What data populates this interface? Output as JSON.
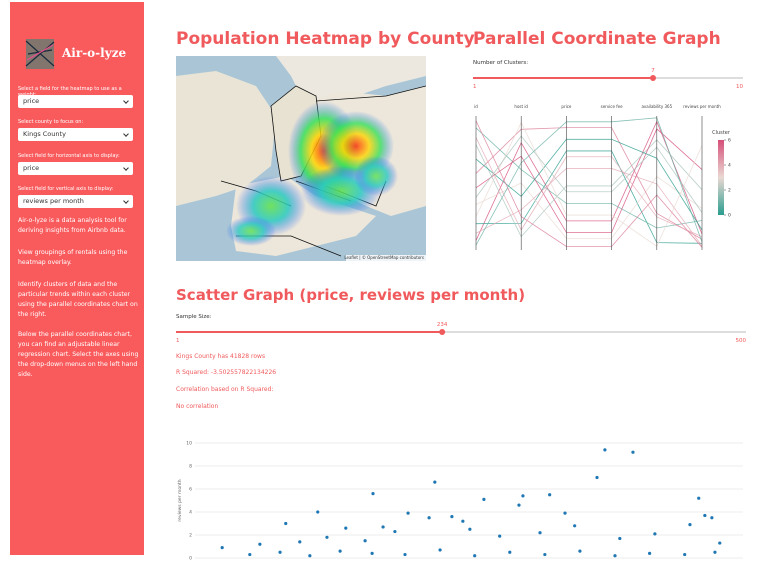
{
  "sidebar": {
    "app_title": "Air-o-lyze",
    "controls": [
      {
        "label": "Select a field for the heatmap to use as a weight:",
        "value": "price"
      },
      {
        "label": "Select county to focus on:",
        "value": "Kings County"
      },
      {
        "label": "Select field for horizontal axis to display:",
        "value": "price"
      },
      {
        "label": "Select field for vertical axis to display:",
        "value": "reviews per month"
      }
    ],
    "paragraphs": [
      "Air-o-lyze is a data analysis tool for deriving insights from Airbnb data.",
      "View groupings of rentals using the heatmap overlay.",
      "Identify clusters of data and the particular trends within each cluster using the parallel coordinates chart on the right.",
      "Below the parallel coordinates chart, you can find an adjustable linear regression chart. Select the axes using the drop-down menus on the left hand side."
    ]
  },
  "heatmap": {
    "title": "Population Heatmap by County",
    "attribution": "Leaflet | © OpenStreetMap contributors"
  },
  "parallel_section": {
    "title": "Parallel Coordinate Graph",
    "slider": {
      "label": "Number of Clusters:",
      "min": 1,
      "max": 10,
      "value": 7
    }
  },
  "scatter_section": {
    "title": "Scatter Graph (price, reviews per month)",
    "slider": {
      "label": "Sample Size:",
      "min": 1,
      "max": 500,
      "value": 234
    },
    "lines": [
      "Kings County has 41828 rows",
      "R Squared: -3.502557822134226",
      "Correlation based on R Squared:",
      "No correlation"
    ]
  },
  "chart_data": [
    {
      "type": "parallel",
      "dimensions": [
        {
          "name": "id",
          "ylim": [
            1000000,
            57000000
          ]
        },
        {
          "name": "host id",
          "ylim": [
            100000000,
            99900000000
          ]
        },
        {
          "name": "price",
          "ylim": [
            50,
            1200
          ]
        },
        {
          "name": "service fee",
          "ylim": [
            10,
            240
          ]
        },
        {
          "name": "availability 365",
          "ylim": [
            0,
            365
          ]
        },
        {
          "name": "reviews per month",
          "ylim": [
            0,
            10
          ]
        }
      ],
      "rows": [
        {
          "values": [
            5000000,
            80000000000,
            300,
            60,
            350,
            1.2
          ],
          "cluster": 6
        },
        {
          "values": [
            12000000,
            20000000000,
            900,
            180,
            20,
            0.5
          ],
          "cluster": 0
        },
        {
          "values": [
            20000000,
            50000000000,
            150,
            30,
            200,
            3.1
          ],
          "cluster": 3
        },
        {
          "values": [
            33000000,
            90000000000,
            1100,
            220,
            100,
            0.8
          ],
          "cluster": 5
        },
        {
          "values": [
            45000000,
            10000000000,
            600,
            120,
            300,
            4.5
          ],
          "cluster": 2
        },
        {
          "values": [
            52000000,
            60000000000,
            450,
            90,
            60,
            2.2
          ],
          "cluster": 1
        },
        {
          "values": [
            8000000,
            30000000000,
            750,
            150,
            180,
            0.3
          ],
          "cluster": 4
        },
        {
          "values": [
            27000000,
            70000000000,
            200,
            40,
            330,
            6.0
          ],
          "cluster": 6
        },
        {
          "values": [
            39000000,
            40000000000,
            1000,
            200,
            250,
            1.5
          ],
          "cluster": 0
        },
        {
          "values": [
            15000000,
            95000000000,
            350,
            70,
            10,
            7.8
          ],
          "cluster": 3
        },
        {
          "values": [
            55000000,
            25000000000,
            80,
            16,
            150,
            0.2
          ],
          "cluster": 5
        },
        {
          "values": [
            23000000,
            85000000000,
            550,
            110,
            280,
            2.8
          ],
          "cluster": 2
        },
        {
          "values": [
            48000000,
            15000000000,
            850,
            170,
            90,
            1.0
          ],
          "cluster": 4
        },
        {
          "values": [
            3000000,
            65000000000,
            1150,
            230,
            360,
            0.6
          ],
          "cluster": 1
        }
      ],
      "colorbar_title": "Cluster",
      "clim": [
        0,
        6
      ],
      "cticks": [
        0,
        2,
        4,
        6
      ],
      "colorscale": [
        "#2a9d8f",
        "#e9d8d2",
        "#d64f7a"
      ]
    },
    {
      "type": "scatter",
      "ylabel": "reviews per month",
      "color": "#1f77b4",
      "xlim": [
        0,
        1250
      ],
      "ylim": [
        0,
        10
      ],
      "yticks": [
        0,
        2,
        4,
        6,
        8,
        10
      ],
      "grid": true,
      "x": [
        935,
        999,
        917,
        547,
        406,
        809,
        748,
        659,
        1149,
        739,
        280,
        207,
        611,
        429,
        1163,
        1179,
        844,
        586,
        534,
        486,
        344,
        148,
        62,
        239,
        301,
        388,
        456,
        627,
        695,
        787,
        866,
        969,
        1049,
        1129,
        1197,
        125,
        194,
        262,
        331,
        404,
        479,
        559,
        638,
        718,
        798,
        878,
        958,
        1037,
        1117,
        1186
      ],
      "y": [
        9.4,
        9.2,
        7.0,
        6.6,
        5.6,
        5.5,
        5.4,
        5.1,
        5.2,
        4.6,
        4.0,
        3.0,
        3.2,
        2.7,
        3.7,
        3.5,
        3.9,
        3.6,
        3.5,
        3.9,
        2.6,
        1.2,
        0.9,
        1.4,
        1.8,
        1.5,
        2.3,
        2.5,
        1.9,
        2.2,
        2.8,
        1.7,
        2.1,
        2.9,
        1.3,
        0.3,
        0.5,
        0.2,
        0.6,
        0.4,
        0.3,
        0.7,
        0.2,
        0.5,
        0.3,
        0.6,
        0.2,
        0.4,
        0.3,
        0.5
      ]
    }
  ]
}
